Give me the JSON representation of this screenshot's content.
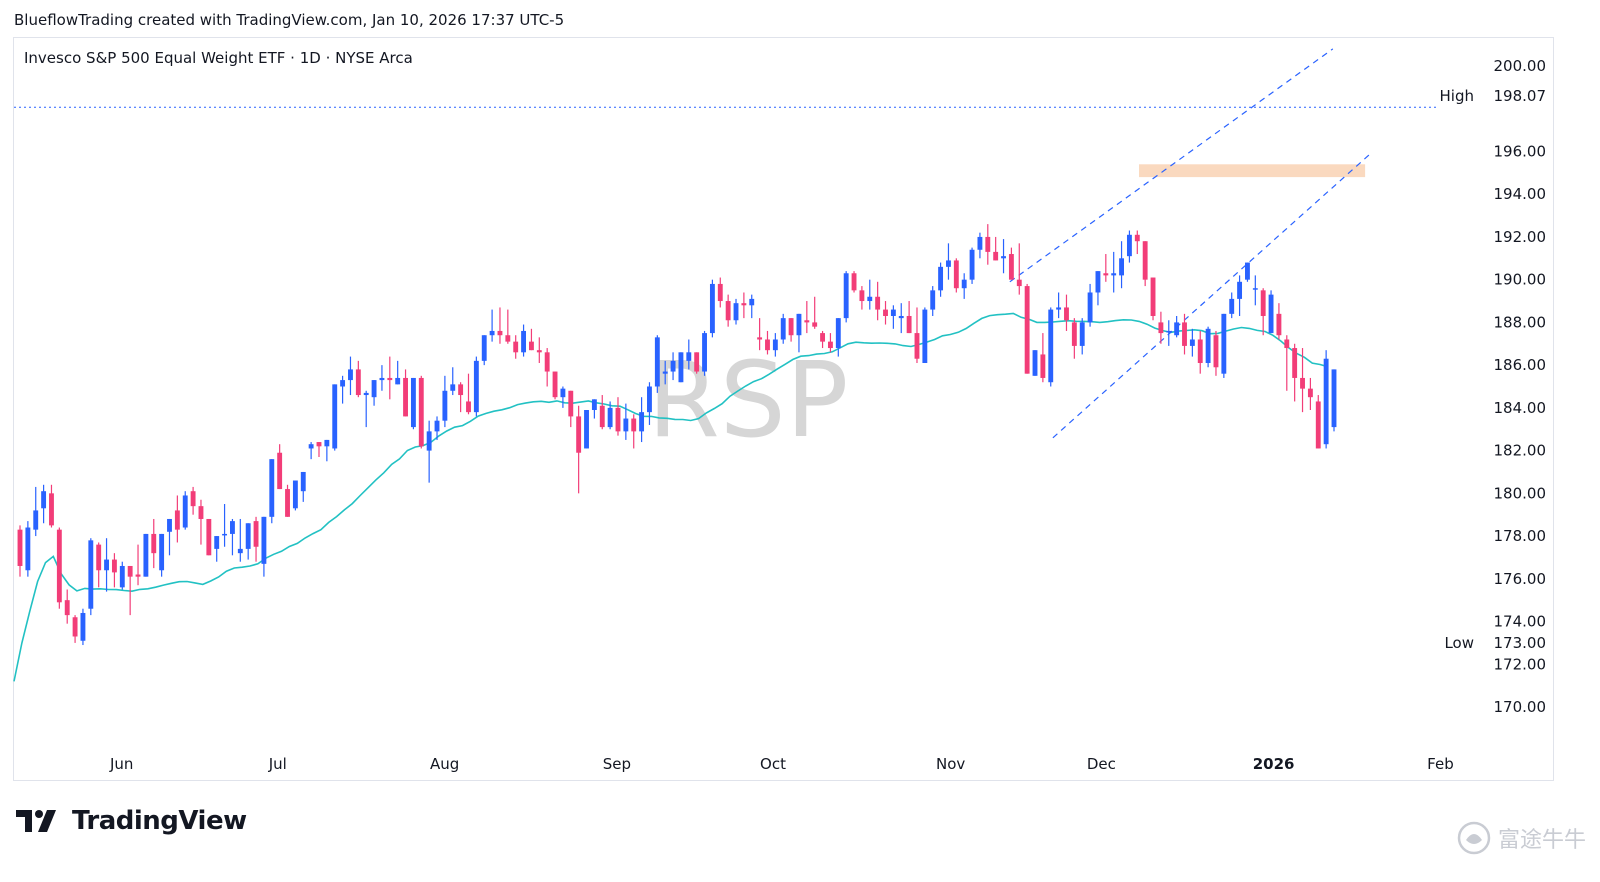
{
  "header": {
    "credit": "BlueflowTrading created with TradingView.com, Jan 10, 2026 17:37 UTC-5"
  },
  "chart_title": "Invesco S&P 500 Equal Weight ETF · 1D · NYSE Arca",
  "symbol_watermark": "RSP",
  "footer": {
    "brand": "TradingView",
    "cn_watermark": "富途牛牛"
  },
  "colors": {
    "up": "#2962ff",
    "down": "#f23d78",
    "ma": "#22c1c3",
    "channel": "#2962ff",
    "zone": "#fad9bf",
    "grid_text": "#131722",
    "high_line": "#2962ff"
  },
  "markers": {
    "high_label": "High",
    "high_value": "198.07",
    "low_label": "Low",
    "low_value": "173.00"
  },
  "chart_data": {
    "type": "candlestick",
    "title": "Invesco S&P 500 Equal Weight ETF · 1D · NYSE Arca",
    "x_ticks": [
      "Jun",
      "Jul",
      "Aug",
      "Sep",
      "Oct",
      "Nov",
      "Dec",
      "2026",
      "Feb"
    ],
    "y_ticks": [
      "200.00",
      "196.00",
      "194.00",
      "192.00",
      "190.00",
      "188.00",
      "186.00",
      "184.00",
      "182.00",
      "180.00",
      "178.00",
      "176.00",
      "174.00",
      "172.00",
      "170.00"
    ],
    "ylim": [
      168.5,
      202
    ],
    "date_range": [
      "2025-05-13",
      "2026-02-06"
    ],
    "tick_dates": [
      "2025-06-02",
      "2025-07-01",
      "2025-08-01",
      "2025-09-02",
      "2025-10-01",
      "2025-11-03",
      "2025-12-01",
      "2026-01-02",
      "2026-02-02"
    ],
    "trading_days": 188,
    "candles_ohlc": [
      [
        178.3,
        178.5,
        176.1,
        176.6
      ],
      [
        176.4,
        178.7,
        176.1,
        178.4
      ],
      [
        178.3,
        180.3,
        178.0,
        179.2
      ],
      [
        179.3,
        180.4,
        178.6,
        180.1
      ],
      [
        180.0,
        180.4,
        178.4,
        178.5
      ],
      [
        178.3,
        178.4,
        174.6,
        174.9
      ],
      [
        175.0,
        175.5,
        173.9,
        174.3
      ],
      [
        174.2,
        174.3,
        173.0,
        173.3
      ],
      [
        173.1,
        174.6,
        172.9,
        174.4
      ],
      [
        174.6,
        177.9,
        174.3,
        177.8
      ],
      [
        177.6,
        177.7,
        175.6,
        176.4
      ],
      [
        176.4,
        177.9,
        175.4,
        176.9
      ],
      [
        176.9,
        177.2,
        175.6,
        176.3
      ],
      [
        175.6,
        176.8,
        175.5,
        176.6
      ],
      [
        176.6,
        176.6,
        174.3,
        176.1
      ],
      [
        176.2,
        177.6,
        175.7,
        176.1
      ],
      [
        176.1,
        177.6,
        176.1,
        178.1
      ],
      [
        178.1,
        178.8,
        176.5,
        177.2
      ],
      [
        176.4,
        178.1,
        176.1,
        178.1
      ],
      [
        178.2,
        178.4,
        177.1,
        178.8
      ],
      [
        179.2,
        179.9,
        177.7,
        178.3
      ],
      [
        178.4,
        180.1,
        178.3,
        179.9
      ],
      [
        180.1,
        180.3,
        179.0,
        179.4
      ],
      [
        179.4,
        179.7,
        177.6,
        178.8
      ],
      [
        178.8,
        178.8,
        177.2,
        177.1
      ],
      [
        177.4,
        177.4,
        176.8,
        178.0
      ],
      [
        178.1,
        179.5,
        177.5,
        178.1
      ],
      [
        178.1,
        178.8,
        177.1,
        178.7
      ],
      [
        177.2,
        178.8,
        176.8,
        177.4
      ],
      [
        177.4,
        178.5,
        176.9,
        178.6
      ],
      [
        178.7,
        178.9,
        176.8,
        177.5
      ],
      [
        176.7,
        178.8,
        176.1,
        178.9
      ],
      [
        178.9,
        181.4,
        178.6,
        181.6
      ],
      [
        181.9,
        182.3,
        181.6,
        180.2
      ],
      [
        180.2,
        180.4,
        179.1,
        178.9
      ],
      [
        179.3,
        180.3,
        179.2,
        180.6
      ],
      [
        180.1,
        180.5,
        179.6,
        181.0
      ],
      [
        182.1,
        182.4,
        181.6,
        182.3
      ],
      [
        182.4,
        182.4,
        181.7,
        182.2
      ],
      [
        182.2,
        182.5,
        181.5,
        182.5
      ],
      [
        182.1,
        183.8,
        182.0,
        185.1
      ],
      [
        185.0,
        185.5,
        184.2,
        185.3
      ],
      [
        185.3,
        186.4,
        184.6,
        185.8
      ],
      [
        185.8,
        186.2,
        184.5,
        184.6
      ],
      [
        184.6,
        184.8,
        183.1,
        184.7
      ],
      [
        184.5,
        185.2,
        184.1,
        185.3
      ],
      [
        185.3,
        186.0,
        184.8,
        185.4
      ],
      [
        185.4,
        186.4,
        184.4,
        185.3
      ],
      [
        185.1,
        186.2,
        185.4,
        185.4
      ],
      [
        185.4,
        185.8,
        184.2,
        183.6
      ],
      [
        183.1,
        185.3,
        183.0,
        185.4
      ],
      [
        185.4,
        185.5,
        182.1,
        182.2
      ],
      [
        182.0,
        183.4,
        180.5,
        182.9
      ],
      [
        182.9,
        183.6,
        182.5,
        183.4
      ],
      [
        183.4,
        185.5,
        183.1,
        184.8
      ],
      [
        184.8,
        185.9,
        184.6,
        185.1
      ],
      [
        185.1,
        185.2,
        183.8,
        184.6
      ],
      [
        184.3,
        185.6,
        183.7,
        183.8
      ],
      [
        183.8,
        186.4,
        183.6,
        186.2
      ],
      [
        186.2,
        186.5,
        186.0,
        187.4
      ],
      [
        187.4,
        188.6,
        187.1,
        187.6
      ],
      [
        187.6,
        188.7,
        187.0,
        187.4
      ],
      [
        187.4,
        188.6,
        187.0,
        187.1
      ],
      [
        187.1,
        187.4,
        186.3,
        186.6
      ],
      [
        186.6,
        187.9,
        186.4,
        187.6
      ],
      [
        187.1,
        187.7,
        186.8,
        186.7
      ],
      [
        186.7,
        187.3,
        186.1,
        186.6
      ],
      [
        186.6,
        186.8,
        185.0,
        185.7
      ],
      [
        185.7,
        185.7,
        184.4,
        184.5
      ],
      [
        184.5,
        185.0,
        184.0,
        184.9
      ],
      [
        184.8,
        184.8,
        183.1,
        183.6
      ],
      [
        183.6,
        184.1,
        180.0,
        181.9
      ],
      [
        182.1,
        183.2,
        182.3,
        183.9
      ],
      [
        183.9,
        184.3,
        183.5,
        184.4
      ],
      [
        184.1,
        184.6,
        183.0,
        183.1
      ],
      [
        183.1,
        184.3,
        183.0,
        184.0
      ],
      [
        184.0,
        184.5,
        182.7,
        182.9
      ],
      [
        182.9,
        184.2,
        182.5,
        183.5
      ],
      [
        183.5,
        183.7,
        182.1,
        182.9
      ],
      [
        182.9,
        184.5,
        182.4,
        183.8
      ],
      [
        183.8,
        185.2,
        183.2,
        185.0
      ],
      [
        185.0,
        187.4,
        184.7,
        187.3
      ],
      [
        185.6,
        186.2,
        185.1,
        185.7
      ],
      [
        185.7,
        186.6,
        185.3,
        186.2
      ],
      [
        185.2,
        186.3,
        185.6,
        186.6
      ],
      [
        186.2,
        187.2,
        185.8,
        186.6
      ],
      [
        186.6,
        186.6,
        185.6,
        185.7
      ],
      [
        185.7,
        187.6,
        185.5,
        187.5
      ],
      [
        187.5,
        190.0,
        187.3,
        189.8
      ],
      [
        189.8,
        190.1,
        188.7,
        189.0
      ],
      [
        189.0,
        189.3,
        187.8,
        188.1
      ],
      [
        188.1,
        189.1,
        187.9,
        188.9
      ],
      [
        188.9,
        189.4,
        188.2,
        188.8
      ],
      [
        188.8,
        189.3,
        188.2,
        189.1
      ],
      [
        187.3,
        188.2,
        186.7,
        187.2
      ],
      [
        187.2,
        187.6,
        186.5,
        186.7
      ],
      [
        186.7,
        187.5,
        186.4,
        187.2
      ],
      [
        187.2,
        188.4,
        187.0,
        188.2
      ],
      [
        188.2,
        188.2,
        187.1,
        187.4
      ],
      [
        187.4,
        188.2,
        186.6,
        188.4
      ],
      [
        188.1,
        189.0,
        187.5,
        188.0
      ],
      [
        188.0,
        189.2,
        187.7,
        187.8
      ],
      [
        187.5,
        187.6,
        186.8,
        187.1
      ],
      [
        187.1,
        187.5,
        186.6,
        186.8
      ],
      [
        186.8,
        188.2,
        186.4,
        188.2
      ],
      [
        188.2,
        190.4,
        188.0,
        190.3
      ],
      [
        190.3,
        190.4,
        189.4,
        189.5
      ],
      [
        189.5,
        189.7,
        188.6,
        189.0
      ],
      [
        189.0,
        190.0,
        188.6,
        189.2
      ],
      [
        189.2,
        189.9,
        188.1,
        188.6
      ],
      [
        188.6,
        189.0,
        187.9,
        188.3
      ],
      [
        188.3,
        188.8,
        187.7,
        188.6
      ],
      [
        188.2,
        188.9,
        187.5,
        188.3
      ],
      [
        188.3,
        189.0,
        187.7,
        187.5
      ],
      [
        187.5,
        188.7,
        186.1,
        186.3
      ],
      [
        186.1,
        188.7,
        187.6,
        188.6
      ],
      [
        188.6,
        189.7,
        188.3,
        189.5
      ],
      [
        189.5,
        190.8,
        189.2,
        190.6
      ],
      [
        190.6,
        191.7,
        190.0,
        190.9
      ],
      [
        190.9,
        191.0,
        189.4,
        189.6
      ],
      [
        189.6,
        190.3,
        189.1,
        190.0
      ],
      [
        190.0,
        191.5,
        189.8,
        191.4
      ],
      [
        191.4,
        192.2,
        191.0,
        192.0
      ],
      [
        192.0,
        192.6,
        190.7,
        191.3
      ],
      [
        191.3,
        192.0,
        190.9,
        190.9
      ],
      [
        191.0,
        191.9,
        190.3,
        191.1
      ],
      [
        191.2,
        191.5,
        190.0,
        190.0
      ],
      [
        190.0,
        191.7,
        189.3,
        189.7
      ],
      [
        189.7,
        189.8,
        186.2,
        185.6
      ],
      [
        185.5,
        186.3,
        185.6,
        186.7
      ],
      [
        186.5,
        187.5,
        185.2,
        185.4
      ],
      [
        185.2,
        188.7,
        185.0,
        188.6
      ],
      [
        188.6,
        189.4,
        188.2,
        188.7
      ],
      [
        188.7,
        189.3,
        187.6,
        188.1
      ],
      [
        188.0,
        188.2,
        186.3,
        186.9
      ],
      [
        186.9,
        188.2,
        186.5,
        188.0
      ],
      [
        188.0,
        189.8,
        187.8,
        189.4
      ],
      [
        189.4,
        190.4,
        188.8,
        190.4
      ],
      [
        190.3,
        191.2,
        189.9,
        190.2
      ],
      [
        190.2,
        191.3,
        189.4,
        190.3
      ],
      [
        190.2,
        191.8,
        189.6,
        191.0
      ],
      [
        191.1,
        192.3,
        190.8,
        192.1
      ],
      [
        192.1,
        192.3,
        191.2,
        191.8
      ],
      [
        191.8,
        191.8,
        189.7,
        190.0
      ],
      [
        190.1,
        190.1,
        188.1,
        188.3
      ],
      [
        188.0,
        188.5,
        187.0,
        187.5
      ],
      [
        187.6,
        188.1,
        186.9,
        187.6
      ],
      [
        187.4,
        188.3,
        187.3,
        188.0
      ],
      [
        188.0,
        188.4,
        186.5,
        186.9
      ],
      [
        186.9,
        187.7,
        186.4,
        187.2
      ],
      [
        187.2,
        187.6,
        185.6,
        186.1
      ],
      [
        186.1,
        187.8,
        185.9,
        187.7
      ],
      [
        187.4,
        187.6,
        185.5,
        185.9
      ],
      [
        185.6,
        188.4,
        185.4,
        188.4
      ],
      [
        188.4,
        189.4,
        188.2,
        189.1
      ],
      [
        189.1,
        190.2,
        188.3,
        189.9
      ],
      [
        190.0,
        190.7,
        189.9,
        190.8
      ],
      [
        189.6,
        190.2,
        188.8,
        189.6
      ],
      [
        189.5,
        189.6,
        187.4,
        188.3
      ],
      [
        187.5,
        189.5,
        188.0,
        189.3
      ],
      [
        188.4,
        188.9,
        187.2,
        187.4
      ],
      [
        187.2,
        187.4,
        184.8,
        186.8
      ],
      [
        186.8,
        187.0,
        184.3,
        185.4
      ],
      [
        185.4,
        186.8,
        183.8,
        184.9
      ],
      [
        184.9,
        185.4,
        183.9,
        184.5
      ],
      [
        184.3,
        184.6,
        182.1,
        182.1
      ],
      [
        182.3,
        186.7,
        182.1,
        186.3
      ],
      [
        183.1,
        185.6,
        182.9,
        185.8
      ]
    ],
    "candles_note": "values read from the chart (price units)"
  }
}
